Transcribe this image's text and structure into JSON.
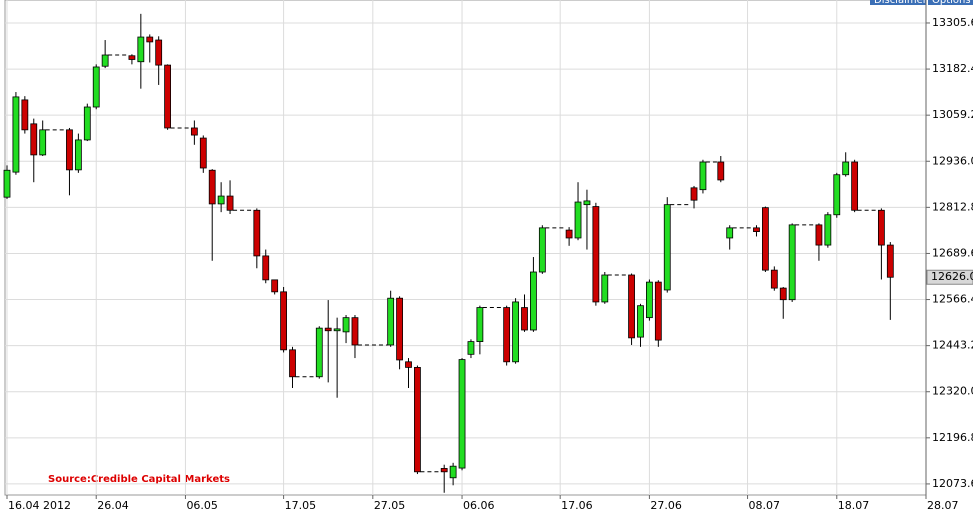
{
  "chart_data": {
    "type": "candlestick",
    "annotation": "Source:Credible Capital Markets",
    "buttons": [
      "Disclaimer",
      "Options"
    ],
    "up_color": "#22dd22",
    "down_color": "#cc0000",
    "grid": true,
    "x": [
      "16.04",
      "17.04",
      "18.04",
      "19.04",
      "20.04",
      "23.04",
      "24.04",
      "25.04",
      "26.04",
      "27.04",
      "30.04",
      "01.05",
      "02.05",
      "03.05",
      "04.05",
      "07.05",
      "08.05",
      "09.05",
      "10.05",
      "11.05",
      "14.05",
      "15.05",
      "16.05",
      "17.05",
      "18.05",
      "21.05",
      "22.05",
      "23.05",
      "24.05",
      "25.05",
      "29.05",
      "30.05",
      "31.05",
      "01.06",
      "04.06",
      "05.06",
      "06.06",
      "07.06",
      "08.06",
      "11.06",
      "12.06",
      "13.06",
      "14.06",
      "15.06",
      "18.06",
      "19.06",
      "20.06",
      "21.06",
      "22.06",
      "25.06",
      "26.06",
      "27.06",
      "28.06",
      "29.06",
      "02.07",
      "03.07",
      "05.07",
      "06.07",
      "09.07",
      "10.07",
      "11.07",
      "12.07",
      "13.07",
      "16.07",
      "17.07",
      "18.07",
      "19.07",
      "20.07",
      "23.07",
      "24.07"
    ],
    "open": [
      12840,
      12907,
      13100,
      13036,
      12953,
      13020,
      12913,
      12993,
      13081,
      13190,
      13218,
      13202,
      13268,
      13260,
      13193,
      13025,
      12998,
      12912,
      12822,
      12843,
      12805,
      12683,
      12619,
      12587,
      12432,
      12360,
      12490,
      12483,
      12480,
      12518,
      12445,
      12570,
      12400,
      12385,
      12115,
      12090,
      12116,
      12420,
      12454,
      12545,
      12400,
      12545,
      12485,
      12640,
      12752,
      12731,
      12820,
      12815,
      12560,
      12632,
      12466,
      12518,
      12613,
      12592,
      12865,
      12860,
      12934,
      12731,
      12758,
      12812,
      12645,
      12597,
      12566,
      12766,
      12712,
      12793,
      12900,
      12934,
      12805,
      12712
    ],
    "high": [
      12925,
      13121,
      13110,
      13050,
      13045,
      13025,
      13010,
      13090,
      13195,
      13260,
      13222,
      13330,
      13275,
      13270,
      13195,
      13045,
      13005,
      12915,
      12880,
      12885,
      12810,
      12700,
      12620,
      12600,
      12440,
      12495,
      12565,
      12518,
      12525,
      12525,
      12590,
      12575,
      12410,
      12390,
      12125,
      12130,
      12410,
      12460,
      12550,
      12550,
      12570,
      12580,
      12680,
      12765,
      12760,
      12880,
      12860,
      12825,
      12640,
      12636,
      12555,
      12620,
      12618,
      12840,
      12870,
      12940,
      12950,
      12765,
      12765,
      12815,
      12655,
      12600,
      12770,
      12770,
      12800,
      12905,
      12960,
      12940,
      12810,
      12720
    ],
    "low": [
      12835,
      12900,
      13010,
      12880,
      12950,
      12845,
      12905,
      12990,
      13075,
      13185,
      13195,
      13130,
      13200,
      13140,
      13020,
      12980,
      12905,
      12670,
      12800,
      12795,
      12650,
      12610,
      12580,
      12425,
      12330,
      12355,
      12345,
      12304,
      12450,
      12410,
      12440,
      12380,
      12330,
      12100,
      12050,
      12070,
      12110,
      12410,
      12420,
      12390,
      12395,
      12480,
      12480,
      12635,
      12710,
      12725,
      12700,
      12550,
      12555,
      12445,
      12440,
      12510,
      12440,
      12585,
      12810,
      12850,
      12880,
      12700,
      12735,
      12640,
      12590,
      12515,
      12560,
      12670,
      12705,
      12785,
      12895,
      12800,
      12620,
      12512
    ],
    "close": [
      12912,
      13108,
      13020,
      12953,
      13020,
      12913,
      12993,
      13081,
      13188,
      13220,
      13208,
      13268,
      13255,
      13193,
      13025,
      13006,
      12918,
      12822,
      12843,
      12805,
      12683,
      12619,
      12587,
      12432,
      12360,
      12490,
      12483,
      12488,
      12518,
      12445,
      12570,
      12405,
      12385,
      12106,
      12106,
      12121,
      12406,
      12454,
      12545,
      12400,
      12560,
      12485,
      12640,
      12758,
      12731,
      12827,
      12830,
      12560,
      12632,
      12464,
      12550,
      12613,
      12458,
      12820,
      12832,
      12934,
      12886,
      12758,
      12748,
      12645,
      12597,
      12566,
      12766,
      12712,
      12793,
      12900,
      12934,
      12805,
      12712,
      12626
    ],
    "last_price": {
      "value": 12626,
      "label": "12626.0"
    },
    "ylim": [
      12044,
      13367
    ],
    "yticks": [
      {
        "value": 12073.6,
        "label": "12073.6"
      },
      12196.8,
      {
        "value": 12320.0,
        "label": "12320.0"
      },
      12443.2,
      12566.4,
      12689.6,
      12812.8,
      {
        "value": 12936.0,
        "label": "12936.0"
      },
      13059.2,
      13182.4,
      13305.6
    ],
    "xlim": [
      "16.04",
      "28.07"
    ],
    "xticks": [
      {
        "value": "16.04",
        "label": "16.04 2012"
      },
      "26.04",
      "06.05",
      "17.05",
      "27.05",
      "06.06",
      "17.06",
      "27.06",
      "08.07",
      "18.07",
      "28.07"
    ]
  }
}
